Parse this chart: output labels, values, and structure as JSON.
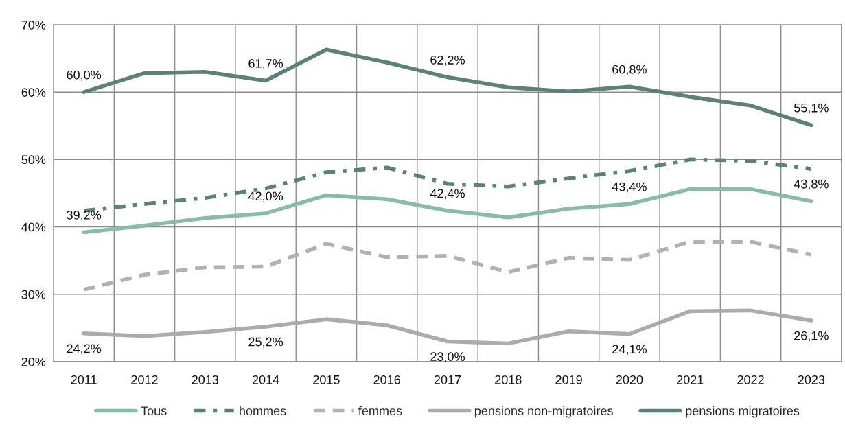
{
  "chart_data": {
    "type": "line",
    "categories": [
      "2011",
      "2012",
      "2013",
      "2014",
      "2015",
      "2016",
      "2017",
      "2018",
      "2019",
      "2020",
      "2021",
      "2022",
      "2023"
    ],
    "ylim": [
      20,
      70
    ],
    "yticks": [
      {
        "value": 20,
        "label": "20%"
      },
      {
        "value": 30,
        "label": "30%"
      },
      {
        "value": 40,
        "label": "40%"
      },
      {
        "value": 50,
        "label": "50%"
      },
      {
        "value": 60,
        "label": "60%"
      },
      {
        "value": 70,
        "label": "70%"
      }
    ],
    "grid": true,
    "legend": "bottom",
    "marker": "none",
    "series": [
      {
        "name": "Tous",
        "color": "#88bca5",
        "line_style": "solid",
        "values": [
          39.2,
          40.2,
          41.3,
          42.0,
          44.7,
          44.1,
          42.4,
          41.4,
          42.7,
          43.4,
          45.6,
          45.6,
          43.8
        ],
        "value_labels": [
          "39,2%",
          null,
          null,
          "42,0%",
          null,
          null,
          "42,4%",
          null,
          null,
          "43,4%",
          null,
          null,
          "43,8%"
        ]
      },
      {
        "name": "hommes",
        "color": "#5b8272",
        "line_style": "dashdot",
        "values": [
          42.4,
          43.4,
          44.3,
          45.7,
          48.1,
          48.8,
          46.4,
          46.0,
          47.2,
          48.3,
          50.0,
          49.8,
          48.6
        ]
      },
      {
        "name": "femmes",
        "color": "#b0b0b5",
        "line_style": "dashed",
        "values": [
          30.7,
          32.9,
          34.0,
          34.1,
          37.5,
          35.5,
          35.7,
          33.3,
          35.4,
          35.1,
          37.8,
          37.8,
          35.9
        ]
      },
      {
        "name": "pensions non-migratoires",
        "color": "#aaaaaf",
        "line_style": "solid",
        "values": [
          24.2,
          23.8,
          24.4,
          25.2,
          26.3,
          25.4,
          23.0,
          22.7,
          24.5,
          24.1,
          27.5,
          27.6,
          26.1
        ],
        "value_labels": [
          "24,2%",
          null,
          null,
          "25,2%",
          null,
          null,
          "23,0%",
          null,
          null,
          "24,1%",
          null,
          null,
          "26,1%"
        ]
      },
      {
        "name": "pensions migratoires",
        "color": "#5b8272",
        "line_style": "solid",
        "values": [
          60.0,
          62.8,
          63.0,
          61.7,
          66.3,
          64.4,
          62.2,
          60.7,
          60.1,
          60.8,
          59.3,
          58.0,
          55.1
        ],
        "value_labels": [
          "60,0%",
          null,
          null,
          "61,7%",
          null,
          null,
          "62,2%",
          null,
          null,
          "60,8%",
          null,
          null,
          "55,1%"
        ]
      }
    ]
  }
}
